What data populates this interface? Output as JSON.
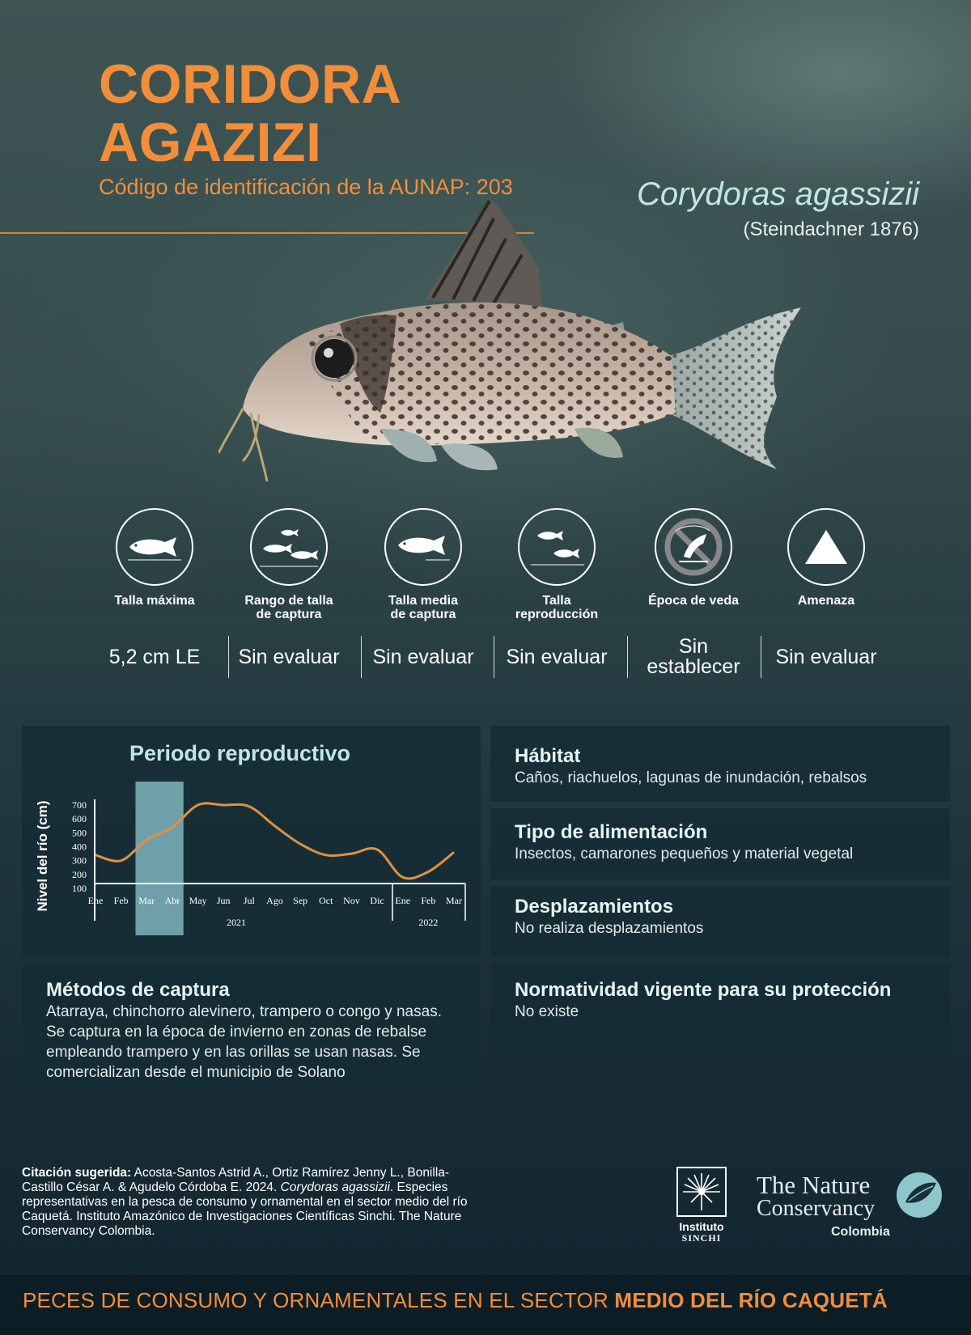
{
  "header": {
    "title_line1": "CORIDORA",
    "title_line2": "AGAZIZI",
    "code": "Código de identificación de la AUNAP: 203",
    "scientific_name": "Corydoras agassizii",
    "author": "(Steindachner 1876)"
  },
  "attributes": [
    {
      "label_line1": "Talla máxima",
      "label_line2": "",
      "value": "5,2 cm LE",
      "icon": "fish-icon"
    },
    {
      "label_line1": "Rango de talla",
      "label_line2": "de captura",
      "value": "Sin evaluar",
      "icon": "fish-group-icon"
    },
    {
      "label_line1": "Talla media",
      "label_line2": "de captura",
      "value": "Sin evaluar",
      "icon": "fish-icon"
    },
    {
      "label_line1": "Talla",
      "label_line2": "reproducción",
      "value": "Sin evaluar",
      "icon": "fish-pair-icon"
    },
    {
      "label_line1": "Época de veda",
      "label_line2": "",
      "value_line1": "Sin",
      "value_line2": "establecer",
      "icon": "no-fishing-icon"
    },
    {
      "label_line1": "Amenaza",
      "label_line2": "",
      "value": "Sin evaluar",
      "icon": "triangle-icon"
    }
  ],
  "colors": {
    "accent": "#f28e3a",
    "title_teal": "#bfe6e6",
    "highlight": "#7fb5bd",
    "line": "#e0913f"
  },
  "chart": {
    "title": "Periodo reproductivo"
  },
  "chart_data": {
    "type": "line",
    "title": "Periodo reproductivo",
    "ylabel": "Nivel del río (cm)",
    "xlabel": "",
    "ylim": [
      0,
      750
    ],
    "yticks": [
      100,
      200,
      300,
      400,
      500,
      600,
      700
    ],
    "categories": [
      "Ene",
      "Feb",
      "Mar",
      "Abr",
      "May",
      "Jun",
      "Jul",
      "Ago",
      "Sep",
      "Oct",
      "Nov",
      "Dic",
      "Ene",
      "Feb",
      "Mar"
    ],
    "year_groups": [
      {
        "label": "2021",
        "start": 0,
        "end": 11
      },
      {
        "label": "2022",
        "start": 12,
        "end": 14
      }
    ],
    "series": [
      {
        "values": [
          340,
          300,
          450,
          540,
          700,
          700,
          690,
          550,
          420,
          340,
          350,
          380,
          180,
          220,
          360
        ]
      }
    ],
    "highlight": {
      "label": "reproductive period",
      "from": "Mar",
      "to": "Abr",
      "start_index": 2,
      "end_index": 3
    },
    "grid": false
  },
  "info": {
    "habitat": {
      "title": "Hábitat",
      "text": "Caños, riachuelos, lagunas de inundación, rebalsos"
    },
    "food": {
      "title": "Tipo de alimentación",
      "text": "Insectos, camarones pequeños y material vegetal"
    },
    "movement": {
      "title": "Desplazamientos",
      "text": "No realiza desplazamientos"
    },
    "capture": {
      "title": "Métodos de captura",
      "text": "Atarraya, chinchorro alevinero, trampero o congo y nasas. Se captura en la época de invierno en zonas de rebalse empleando trampero y en las orillas se usan nasas. Se comercializan desde el municipio de Solano"
    },
    "regulation": {
      "title": "Normatividad vigente para su protección",
      "text": "No existe"
    }
  },
  "citation": {
    "label": "Citación sugerida:",
    "part1": " Acosta-Santos Astrid A., Ortiz Ramírez Jenny L., Bonilla-Castillo César A. & Agudelo Córdoba E. 2024. ",
    "italic": "Corydoras agassizii",
    "part2": ". Especies representativas en la pesca de consumo y ornamental en el sector medio del  río Caquetá. Instituto Amazónico de Investigaciones Científicas Sinchi. The Nature Conservancy Colombia."
  },
  "logos": {
    "sinchi_line1": "Instituto",
    "sinchi_line2": "SINCHI",
    "tnc_line1": "The Nature",
    "tnc_line2": "Conservancy",
    "tnc_line3": "Colombia"
  },
  "footer": {
    "text_normal": "PECES DE CONSUMO Y ORNAMENTALES EN EL SECTOR ",
    "text_bold": "MEDIO DEL RÍO CAQUETÁ"
  }
}
